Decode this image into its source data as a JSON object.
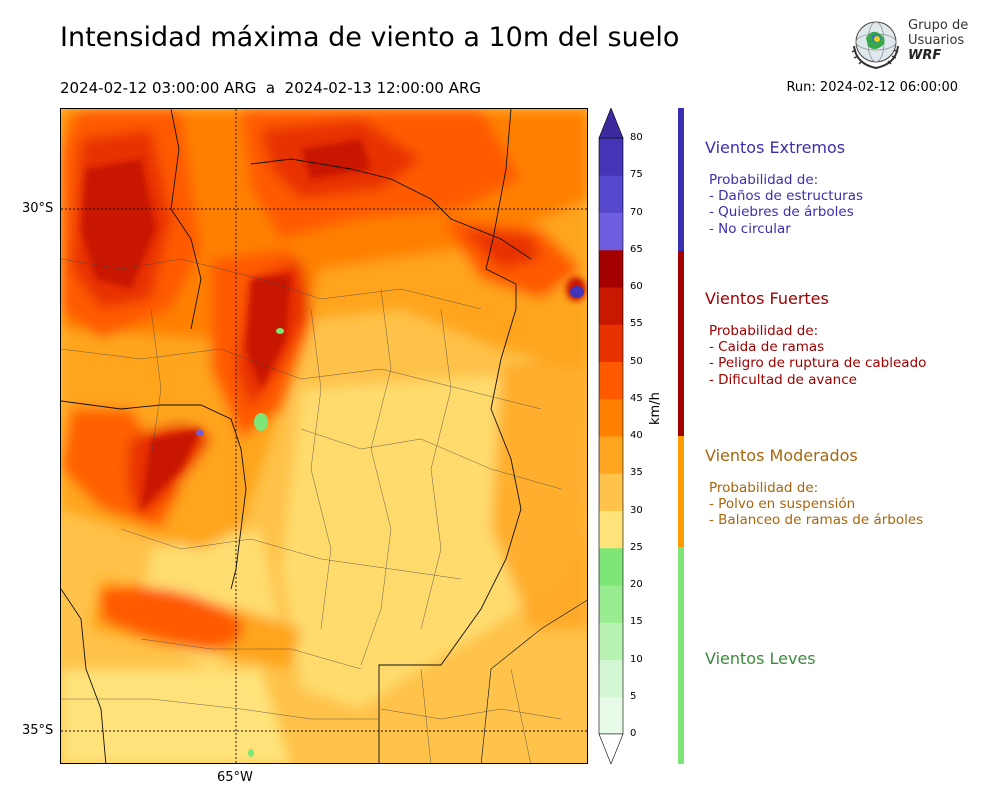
{
  "header": {
    "title": "Intensidad máxima de viento a 10m del suelo",
    "date_range": "2024-02-12 03:00:00 ARG  a  2024-02-13 12:00:00 ARG",
    "run": "Run: 2024-02-12 06:00:00"
  },
  "logo": {
    "line1": "Grupo de",
    "line2": "Usuarios",
    "line3": "WRF"
  },
  "map": {
    "lat_labels": [
      "30°S",
      "35°S"
    ],
    "lon_labels": [
      "65°W"
    ]
  },
  "colorbar": {
    "units": "km/h",
    "ticks": [
      "0",
      "5",
      "10",
      "15",
      "20",
      "25",
      "30",
      "35",
      "40",
      "45",
      "50",
      "55",
      "60",
      "65",
      "70",
      "75",
      "80"
    ],
    "colors": [
      "#e8fbe8",
      "#d2f7d2",
      "#b7f2b0",
      "#99ec8f",
      "#7de676",
      "#ffe37a",
      "#ffc24a",
      "#ffa41f",
      "#ff8000",
      "#ff5a00",
      "#e83200",
      "#c81800",
      "#a50000",
      "#6f5fe0",
      "#5648cc",
      "#4434b8",
      "#3a2a9e"
    ]
  },
  "categories": [
    {
      "title": "Vientos Extremos",
      "color": "#3a2fb0",
      "lines": [
        "Probabilidad de:",
        "- Daños de estructuras",
        "- Quiebres de árboles",
        "- No circular"
      ]
    },
    {
      "title": "Vientos Fuertes",
      "color": "#a00000",
      "lines": [
        "Probabilidad de:",
        "- Caida de ramas",
        "- Peligro de ruptura de cableado",
        "- Dificultad de avance"
      ]
    },
    {
      "title": "Vientos Moderados",
      "color": "#a8650c",
      "lines": [
        "Probabilidad de:",
        "- Polvo en suspensión",
        "- Balanceo de ramas de árboles"
      ]
    },
    {
      "title": "Vientos Leves",
      "color": "#3c8a3c",
      "lines": []
    }
  ]
}
